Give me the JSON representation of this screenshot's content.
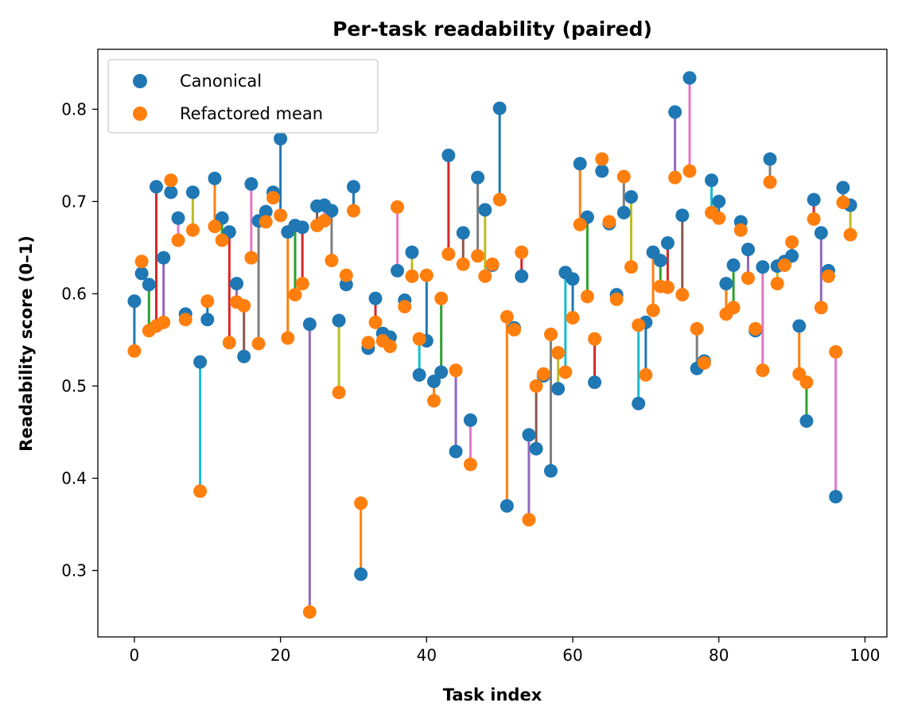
{
  "chart_data": {
    "type": "scatter",
    "title": "Per-task readability (paired)",
    "xlabel": "Task index",
    "ylabel": "Readability score (0–1)",
    "xlim": [
      -5,
      103
    ],
    "ylim": [
      0.228,
      0.865
    ],
    "xticks": [
      0,
      20,
      40,
      60,
      80,
      100
    ],
    "yticks": [
      0.3,
      0.4,
      0.5,
      0.6,
      0.7,
      0.8
    ],
    "ytick_labels": [
      "0.3",
      "0.4",
      "0.5",
      "0.6",
      "0.7",
      "0.8"
    ],
    "legend_position": "top-left",
    "x": [
      0,
      1,
      2,
      3,
      4,
      5,
      6,
      7,
      8,
      9,
      10,
      11,
      12,
      13,
      14,
      15,
      16,
      17,
      18,
      19,
      20,
      21,
      22,
      23,
      24,
      25,
      26,
      27,
      28,
      29,
      30,
      31,
      32,
      33,
      34,
      35,
      36,
      37,
      38,
      39,
      40,
      41,
      42,
      43,
      44,
      45,
      46,
      47,
      48,
      49,
      50,
      51,
      52,
      53,
      54,
      55,
      56,
      57,
      58,
      59,
      60,
      61,
      62,
      63,
      64,
      65,
      66,
      67,
      68,
      69,
      70,
      71,
      72,
      73,
      74,
      75,
      76,
      77,
      78,
      79,
      80,
      81,
      82,
      83,
      84,
      85,
      86,
      87,
      88,
      89,
      90,
      91,
      92,
      93,
      94,
      95,
      96,
      97,
      98
    ],
    "series": [
      {
        "name": "Canonical",
        "color": "#1f77b4",
        "values": [
          0.592,
          0.622,
          0.61,
          0.716,
          0.639,
          0.71,
          0.682,
          0.578,
          0.71,
          0.526,
          0.572,
          0.725,
          0.682,
          0.667,
          0.611,
          0.532,
          0.719,
          0.679,
          0.689,
          0.71,
          0.768,
          0.667,
          0.674,
          0.672,
          0.567,
          0.695,
          0.696,
          0.69,
          0.571,
          0.61,
          0.716,
          0.296,
          0.541,
          0.595,
          0.557,
          0.553,
          0.625,
          0.593,
          0.645,
          0.512,
          0.549,
          0.505,
          0.515,
          0.75,
          0.429,
          0.666,
          0.463,
          0.726,
          0.691,
          0.631,
          0.801,
          0.37,
          0.563,
          0.619,
          0.447,
          0.432,
          0.511,
          0.408,
          0.497,
          0.623,
          0.616,
          0.741,
          0.683,
          0.504,
          0.733,
          0.676,
          0.599,
          0.688,
          0.705,
          0.481,
          0.569,
          0.645,
          0.636,
          0.655,
          0.797,
          0.685,
          0.834,
          0.519,
          0.527,
          0.723,
          0.7,
          0.611,
          0.631,
          0.678,
          0.648,
          0.56,
          0.629,
          0.746,
          0.63,
          0.635,
          0.641,
          0.565,
          0.462,
          0.702,
          0.666,
          0.625,
          0.38,
          0.715,
          0.696
        ]
      },
      {
        "name": "Refactored mean",
        "color": "#ff7f0e",
        "values": [
          0.538,
          0.635,
          0.56,
          0.565,
          0.569,
          0.723,
          0.658,
          0.572,
          0.669,
          0.386,
          0.592,
          0.673,
          0.658,
          0.547,
          0.591,
          0.587,
          0.639,
          0.546,
          0.678,
          0.704,
          0.685,
          0.552,
          0.599,
          0.611,
          0.255,
          0.674,
          0.679,
          0.636,
          0.493,
          0.62,
          0.69,
          0.373,
          0.547,
          0.569,
          0.549,
          0.543,
          0.694,
          0.586,
          0.619,
          0.551,
          0.62,
          0.484,
          0.595,
          0.643,
          0.517,
          0.632,
          0.415,
          0.641,
          0.619,
          0.632,
          0.702,
          0.575,
          0.561,
          0.645,
          0.355,
          0.5,
          0.513,
          0.556,
          0.536,
          0.515,
          0.574,
          0.675,
          0.597,
          0.551,
          0.746,
          0.678,
          0.594,
          0.727,
          0.629,
          0.566,
          0.512,
          0.582,
          0.608,
          0.607,
          0.726,
          0.599,
          0.733,
          0.562,
          0.525,
          0.688,
          0.682,
          0.578,
          0.585,
          0.669,
          0.617,
          0.562,
          0.517,
          0.721,
          0.611,
          0.631,
          0.656,
          0.513,
          0.504,
          0.681,
          0.585,
          0.619,
          0.537,
          0.699,
          0.664
        ]
      }
    ],
    "line_colors": [
      "#1f77b4",
      "#ff7f0e",
      "#2ca02c",
      "#d62728",
      "#9467bd",
      "#8c564b",
      "#e377c2",
      "#7f7f7f",
      "#bcbd22",
      "#17becf"
    ]
  }
}
